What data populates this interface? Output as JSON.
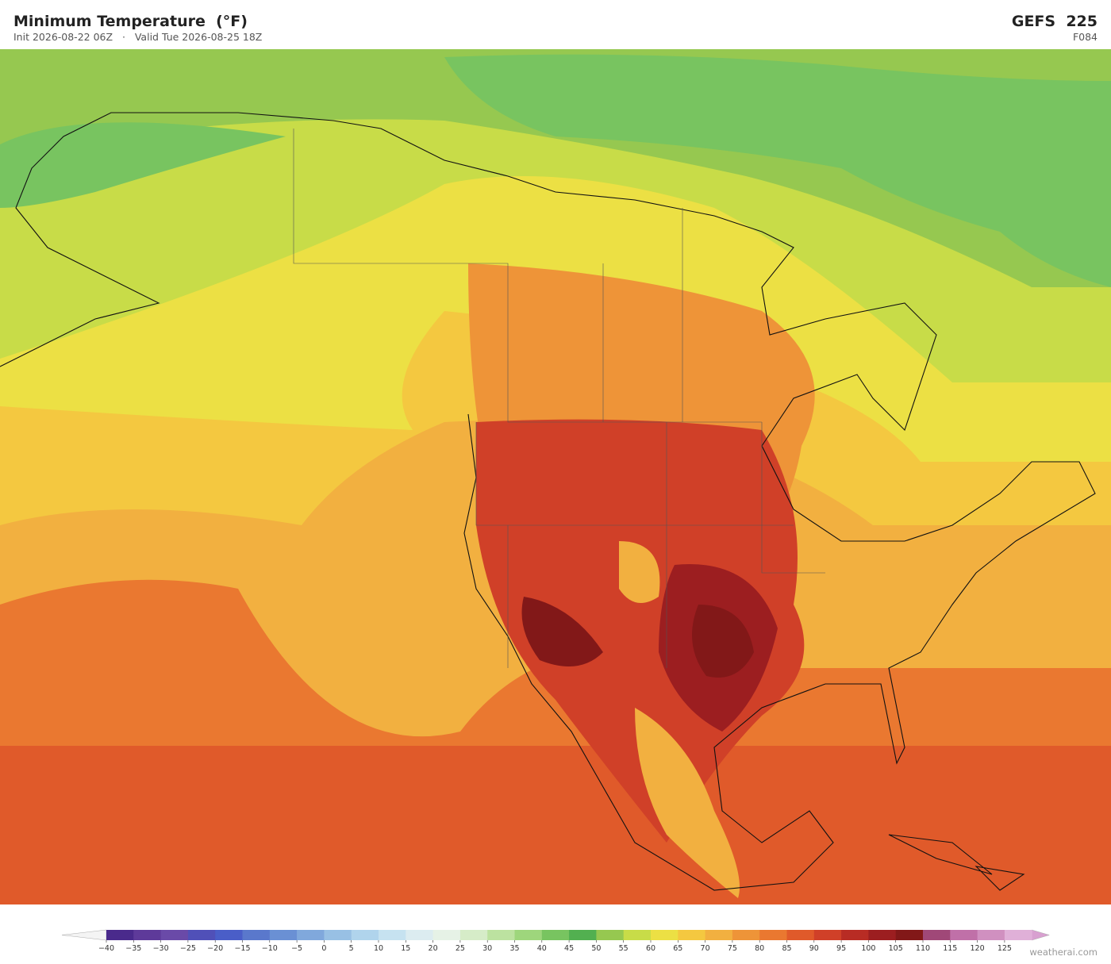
{
  "header": {
    "title": "Minimum Temperature  (°F)",
    "subtitle": "Init 2026-08-22 06Z   ·   Valid Tue 2026-08-25 18Z",
    "model": "GEFS  225",
    "forecast_hour": "F084"
  },
  "colorbar": {
    "ticks": [
      {
        "value": -40,
        "label": "−40"
      },
      {
        "value": -35,
        "label": "−35"
      },
      {
        "value": -30,
        "label": "−30"
      },
      {
        "value": -25,
        "label": "−25"
      },
      {
        "value": -20,
        "label": "−20"
      },
      {
        "value": -15,
        "label": "−15"
      },
      {
        "value": -10,
        "label": "−10"
      },
      {
        "value": -5,
        "label": "−5"
      },
      0,
      5,
      10,
      15,
      20,
      25,
      30,
      35,
      40,
      45,
      50,
      55,
      60,
      65,
      70,
      75,
      80,
      85,
      90,
      95,
      100,
      105,
      110,
      115,
      120,
      125
    ],
    "colors": [
      "#4a2a8c",
      "#5e3a9a",
      "#6a4aa8",
      "#5050b8",
      "#4a5ec8",
      "#5a78cc",
      "#6a90d4",
      "#80a8dc",
      "#98c0e4",
      "#b0d4ec",
      "#c6e2f0",
      "#dcecf0",
      "#e6f2e6",
      "#d6ecc8",
      "#bce2a0",
      "#9ed67c",
      "#78c460",
      "#52b050",
      "#96c850",
      "#c8dc48",
      "#ece044",
      "#f4c840",
      "#f2b040",
      "#ee9438",
      "#ea7830",
      "#e05a2a",
      "#d04028",
      "#b82c24",
      "#9c1e20",
      "#821818",
      "#a04878",
      "#c070a8",
      "#d090c0",
      "#e0b0d8"
    ],
    "under_color": "#f4f4f4",
    "over_color": "#d8a0d0"
  },
  "footer": {
    "credit": "weatherai.com"
  }
}
